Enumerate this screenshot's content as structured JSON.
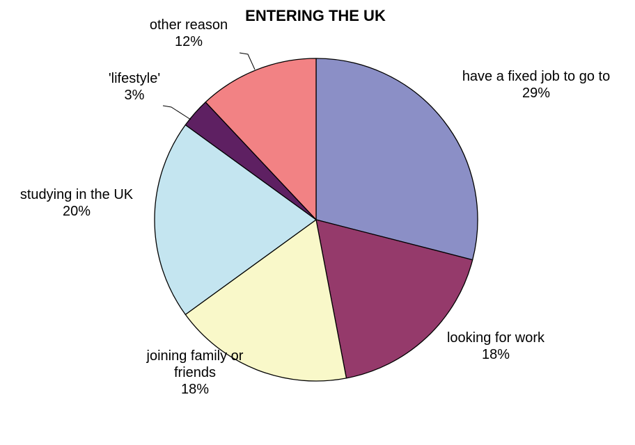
{
  "chart_data": {
    "type": "pie",
    "title": "ENTERING THE UK",
    "slices": [
      {
        "label_lines": [
          "have a fixed job to go to"
        ],
        "percent_label": "29%",
        "value": 29,
        "color": "#8B8FC6"
      },
      {
        "label_lines": [
          "looking for work"
        ],
        "percent_label": "18%",
        "value": 18,
        "color": "#953A6B"
      },
      {
        "label_lines": [
          "joining family or",
          "friends"
        ],
        "percent_label": "18%",
        "value": 18,
        "color": "#F9F8C9"
      },
      {
        "label_lines": [
          "studying in the UK"
        ],
        "percent_label": "20%",
        "value": 20,
        "color": "#C4E5F0"
      },
      {
        "label_lines": [
          "'lifestyle'"
        ],
        "percent_label": "3%",
        "value": 3,
        "color": "#5E2062"
      },
      {
        "label_lines": [
          "other reason"
        ],
        "percent_label": "12%",
        "value": 12,
        "color": "#F28284"
      }
    ],
    "start_angle_deg": 0,
    "direction": "clockwise",
    "legend": "none"
  }
}
